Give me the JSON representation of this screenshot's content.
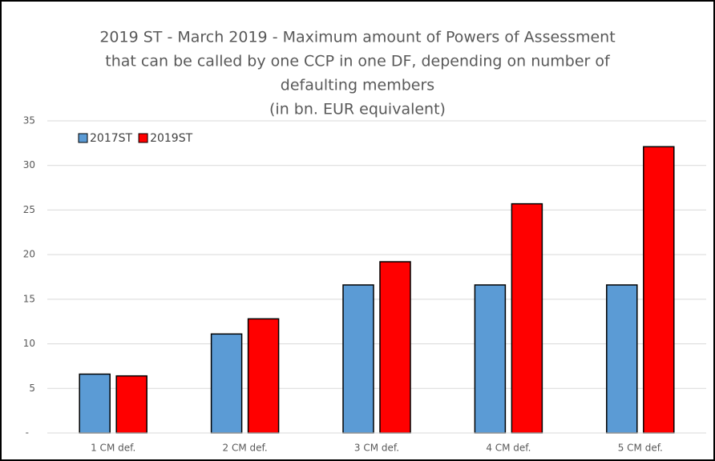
{
  "chart_data": {
    "type": "bar",
    "title": [
      "2019 ST - March 2019 - Maximum amount of Powers of Assessment",
      "that can be called by one CCP in one DF, depending on number of",
      "defaulting members",
      "(in bn. EUR equivalent)"
    ],
    "categories": [
      "1 CM def.",
      "2 CM def.",
      "3 CM def.",
      "4 CM def.",
      "5 CM def."
    ],
    "series": [
      {
        "name": "2017ST",
        "color": "#5b9bd5",
        "values": [
          6.6,
          11.1,
          16.6,
          16.6,
          16.6
        ]
      },
      {
        "name": "2019ST",
        "color": "#ff0000",
        "values": [
          6.4,
          12.8,
          19.2,
          25.7,
          32.1
        ]
      }
    ],
    "ylim": [
      0,
      35
    ],
    "yticks": [
      {
        "value": 0,
        "label": "-"
      },
      5,
      10,
      15,
      20,
      25,
      30,
      35
    ],
    "grid": true,
    "legend": "top-left"
  }
}
